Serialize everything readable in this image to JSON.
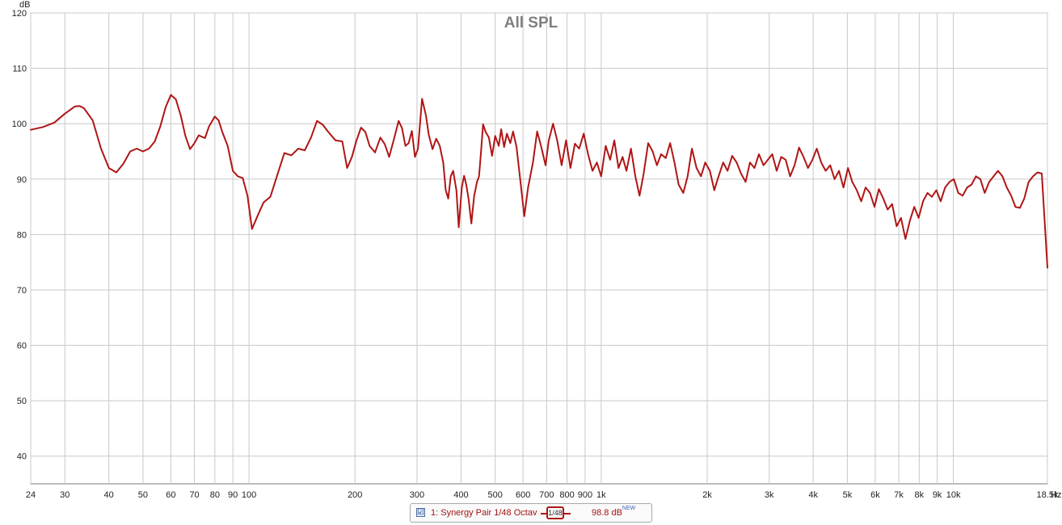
{
  "chart_data": {
    "type": "line",
    "title": "All SPL",
    "xlabel": "Hz",
    "ylabel": "dB",
    "xscale": "log",
    "xlim": [
      24,
      18500
    ],
    "ylim": [
      35,
      120
    ],
    "grid": true,
    "x_ticks": [
      {
        "v": 24,
        "label": "24"
      },
      {
        "v": 30,
        "label": "30"
      },
      {
        "v": 40,
        "label": "40"
      },
      {
        "v": 50,
        "label": "50"
      },
      {
        "v": 60,
        "label": "60"
      },
      {
        "v": 70,
        "label": "70"
      },
      {
        "v": 80,
        "label": "80"
      },
      {
        "v": 90,
        "label": "90"
      },
      {
        "v": 100,
        "label": "100"
      },
      {
        "v": 200,
        "label": "200"
      },
      {
        "v": 300,
        "label": "300"
      },
      {
        "v": 400,
        "label": "400"
      },
      {
        "v": 500,
        "label": "500"
      },
      {
        "v": 600,
        "label": "600"
      },
      {
        "v": 700,
        "label": "700"
      },
      {
        "v": 800,
        "label": "800"
      },
      {
        "v": 900,
        "label": "900"
      },
      {
        "v": 1000,
        "label": "1k"
      },
      {
        "v": 2000,
        "label": "2k"
      },
      {
        "v": 3000,
        "label": "3k"
      },
      {
        "v": 4000,
        "label": "4k"
      },
      {
        "v": 5000,
        "label": "5k"
      },
      {
        "v": 6000,
        "label": "6k"
      },
      {
        "v": 7000,
        "label": "7k"
      },
      {
        "v": 8000,
        "label": "8k"
      },
      {
        "v": 9000,
        "label": "9k"
      },
      {
        "v": 10000,
        "label": "10k"
      },
      {
        "v": 18500,
        "label": "18.5k"
      }
    ],
    "y_ticks": [
      {
        "v": 120,
        "label": "120"
      },
      {
        "v": 110,
        "label": "110"
      },
      {
        "v": 100,
        "label": "100"
      },
      {
        "v": 90,
        "label": "90"
      },
      {
        "v": 80,
        "label": "80"
      },
      {
        "v": 70,
        "label": "70"
      },
      {
        "v": 60,
        "label": "60"
      },
      {
        "v": 50,
        "label": "50"
      },
      {
        "v": 40,
        "label": "40"
      }
    ],
    "series": [
      {
        "name": "1: Synergy Pair 1/48 Octav",
        "color": "#b01515",
        "points": [
          [
            24,
            98.9
          ],
          [
            26,
            99.4
          ],
          [
            28,
            100.2
          ],
          [
            30,
            101.8
          ],
          [
            32,
            103.1
          ],
          [
            33,
            103.2
          ],
          [
            34,
            102.8
          ],
          [
            36,
            100.6
          ],
          [
            38,
            95.5
          ],
          [
            40,
            92.0
          ],
          [
            42,
            91.2
          ],
          [
            44,
            92.8
          ],
          [
            46,
            95.0
          ],
          [
            48,
            95.5
          ],
          [
            50,
            95.0
          ],
          [
            52,
            95.5
          ],
          [
            54,
            96.8
          ],
          [
            56,
            99.5
          ],
          [
            58,
            103.0
          ],
          [
            60,
            105.2
          ],
          [
            62,
            104.4
          ],
          [
            64,
            101.5
          ],
          [
            66,
            97.8
          ],
          [
            68,
            95.4
          ],
          [
            70,
            96.5
          ],
          [
            72,
            97.9
          ],
          [
            75,
            97.4
          ],
          [
            77,
            99.5
          ],
          [
            80,
            101.3
          ],
          [
            82,
            100.6
          ],
          [
            84,
            98.5
          ],
          [
            87,
            96.0
          ],
          [
            90,
            91.5
          ],
          [
            93,
            90.5
          ],
          [
            96,
            90.2
          ],
          [
            99,
            87.0
          ],
          [
            102,
            81.0
          ],
          [
            106,
            83.5
          ],
          [
            110,
            85.8
          ],
          [
            115,
            86.8
          ],
          [
            120,
            90.5
          ],
          [
            126,
            94.7
          ],
          [
            132,
            94.3
          ],
          [
            138,
            95.5
          ],
          [
            144,
            95.2
          ],
          [
            150,
            97.5
          ],
          [
            156,
            100.5
          ],
          [
            162,
            99.8
          ],
          [
            168,
            98.5
          ],
          [
            176,
            97.0
          ],
          [
            184,
            96.8
          ],
          [
            190,
            92.0
          ],
          [
            196,
            94.0
          ],
          [
            202,
            97.0
          ],
          [
            208,
            99.3
          ],
          [
            214,
            98.5
          ],
          [
            220,
            96.0
          ],
          [
            228,
            94.8
          ],
          [
            236,
            97.5
          ],
          [
            243,
            96.3
          ],
          [
            250,
            94.0
          ],
          [
            258,
            97.2
          ],
          [
            266,
            100.5
          ],
          [
            272,
            99.2
          ],
          [
            278,
            96.0
          ],
          [
            284,
            96.5
          ],
          [
            290,
            98.7
          ],
          [
            296,
            94.0
          ],
          [
            302,
            95.5
          ],
          [
            310,
            104.5
          ],
          [
            318,
            101.5
          ],
          [
            324,
            98.0
          ],
          [
            332,
            95.4
          ],
          [
            340,
            97.3
          ],
          [
            348,
            96.0
          ],
          [
            356,
            93.0
          ],
          [
            362,
            88.0
          ],
          [
            368,
            86.5
          ],
          [
            374,
            90.5
          ],
          [
            380,
            91.5
          ],
          [
            388,
            88.0
          ],
          [
            394,
            81.3
          ],
          [
            402,
            88.5
          ],
          [
            408,
            90.6
          ],
          [
            414,
            89.0
          ],
          [
            420,
            86.5
          ],
          [
            428,
            82.0
          ],
          [
            436,
            87.0
          ],
          [
            444,
            89.5
          ],
          [
            450,
            90.5
          ],
          [
            456,
            95.0
          ],
          [
            462,
            99.9
          ],
          [
            470,
            98.5
          ],
          [
            480,
            97.5
          ],
          [
            490,
            94.2
          ],
          [
            500,
            97.8
          ],
          [
            512,
            96.0
          ],
          [
            520,
            99.0
          ],
          [
            530,
            95.8
          ],
          [
            540,
            98.2
          ],
          [
            552,
            96.5
          ],
          [
            562,
            98.6
          ],
          [
            575,
            95.8
          ],
          [
            590,
            89.5
          ],
          [
            605,
            83.3
          ],
          [
            620,
            88.5
          ],
          [
            640,
            93.0
          ],
          [
            658,
            98.6
          ],
          [
            675,
            96.0
          ],
          [
            695,
            92.5
          ],
          [
            710,
            97.0
          ],
          [
            730,
            100.0
          ],
          [
            750,
            97.0
          ],
          [
            772,
            92.5
          ],
          [
            795,
            97.0
          ],
          [
            818,
            92.0
          ],
          [
            842,
            96.4
          ],
          [
            866,
            95.5
          ],
          [
            892,
            98.2
          ],
          [
            918,
            94.5
          ],
          [
            945,
            91.5
          ],
          [
            972,
            93.0
          ],
          [
            1000,
            90.5
          ],
          [
            1030,
            96.0
          ],
          [
            1060,
            93.5
          ],
          [
            1090,
            97.0
          ],
          [
            1120,
            92.0
          ],
          [
            1150,
            94.0
          ],
          [
            1180,
            91.5
          ],
          [
            1215,
            95.5
          ],
          [
            1250,
            90.5
          ],
          [
            1285,
            87.0
          ],
          [
            1320,
            91.0
          ],
          [
            1360,
            96.5
          ],
          [
            1400,
            95.0
          ],
          [
            1440,
            92.5
          ],
          [
            1480,
            94.5
          ],
          [
            1525,
            93.8
          ],
          [
            1570,
            96.5
          ],
          [
            1615,
            93.0
          ],
          [
            1660,
            89.0
          ],
          [
            1710,
            87.5
          ],
          [
            1760,
            90.5
          ],
          [
            1810,
            95.5
          ],
          [
            1865,
            92.0
          ],
          [
            1920,
            90.5
          ],
          [
            1975,
            93.0
          ],
          [
            2035,
            91.5
          ],
          [
            2095,
            88.0
          ],
          [
            2155,
            90.5
          ],
          [
            2220,
            93.0
          ],
          [
            2285,
            91.5
          ],
          [
            2355,
            94.2
          ],
          [
            2425,
            93.0
          ],
          [
            2495,
            91.0
          ],
          [
            2570,
            89.5
          ],
          [
            2645,
            93.0
          ],
          [
            2725,
            92.0
          ],
          [
            2805,
            94.5
          ],
          [
            2890,
            92.5
          ],
          [
            2975,
            93.5
          ],
          [
            3060,
            94.5
          ],
          [
            3150,
            91.5
          ],
          [
            3245,
            94.0
          ],
          [
            3340,
            93.5
          ],
          [
            3440,
            90.5
          ],
          [
            3540,
            92.5
          ],
          [
            3645,
            95.7
          ],
          [
            3755,
            94.0
          ],
          [
            3865,
            92.0
          ],
          [
            3980,
            93.5
          ],
          [
            4095,
            95.5
          ],
          [
            4215,
            93.0
          ],
          [
            4340,
            91.5
          ],
          [
            4470,
            92.5
          ],
          [
            4600,
            90.0
          ],
          [
            4735,
            91.5
          ],
          [
            4875,
            88.5
          ],
          [
            5020,
            92.0
          ],
          [
            5165,
            89.5
          ],
          [
            5320,
            88.0
          ],
          [
            5475,
            86.0
          ],
          [
            5635,
            88.5
          ],
          [
            5800,
            87.5
          ],
          [
            5970,
            85.0
          ],
          [
            6145,
            88.2
          ],
          [
            6325,
            86.5
          ],
          [
            6510,
            84.5
          ],
          [
            6700,
            85.5
          ],
          [
            6900,
            81.5
          ],
          [
            7100,
            83.0
          ],
          [
            7310,
            79.2
          ],
          [
            7525,
            82.5
          ],
          [
            7745,
            85.0
          ],
          [
            7970,
            83.0
          ],
          [
            8205,
            86.0
          ],
          [
            8445,
            87.5
          ],
          [
            8690,
            86.8
          ],
          [
            8945,
            88.0
          ],
          [
            9205,
            86.0
          ],
          [
            9475,
            88.5
          ],
          [
            9750,
            89.5
          ],
          [
            10035,
            90.0
          ],
          [
            10330,
            87.5
          ],
          [
            10630,
            87.0
          ],
          [
            10940,
            88.5
          ],
          [
            11260,
            89.0
          ],
          [
            11590,
            90.5
          ],
          [
            11930,
            90.0
          ],
          [
            12280,
            87.5
          ],
          [
            12640,
            89.5
          ],
          [
            13010,
            90.5
          ],
          [
            13390,
            91.5
          ],
          [
            13780,
            90.5
          ],
          [
            14180,
            88.5
          ],
          [
            14590,
            87.0
          ],
          [
            15010,
            85.0
          ],
          [
            15450,
            84.8
          ],
          [
            15900,
            86.5
          ],
          [
            16360,
            89.5
          ],
          [
            16840,
            90.5
          ],
          [
            17330,
            91.2
          ],
          [
            17830,
            91.0
          ],
          [
            18500,
            74.0
          ]
        ]
      }
    ]
  },
  "legend": {
    "checkbox": "☑",
    "name": "1: Synergy Pair 1/48 Octav",
    "smoothing": "1/48",
    "value": "98.8 dB",
    "badge": "NEW"
  }
}
